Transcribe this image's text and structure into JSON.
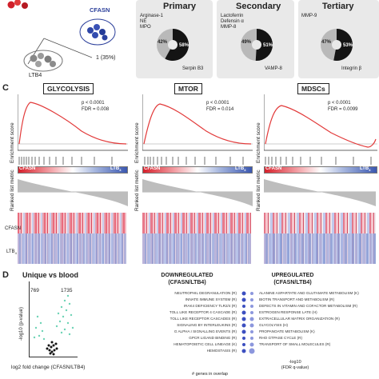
{
  "panel_c": {
    "letter": "C"
  },
  "panel_d": {
    "letter": "D"
  },
  "pca": {
    "cfasn_label": "CFASN",
    "ltb4_label": "LTB4",
    "pc_label": "1 (35%)"
  },
  "granules": [
    {
      "title": "Primary",
      "left_text": [
        "Arginase-1",
        "NE",
        "MPO"
      ],
      "pct_small": "42%",
      "pct_large": "58%",
      "right_text": "Serpin B3",
      "fraction_large": 0.58
    },
    {
      "title": "Secondary",
      "left_text": [
        "Lactoferrin",
        "Defensin α",
        "MMP-8"
      ],
      "pct_small": "49%",
      "pct_large": "51%",
      "right_text": "VAMP-8",
      "fraction_large": 0.51
    },
    {
      "title": "Tertiary",
      "left_text": [
        "MMP-9"
      ],
      "pct_small": "47%",
      "pct_large": "53%",
      "right_text": "Integrin β",
      "fraction_large": 0.53
    }
  ],
  "gsea": [
    {
      "title": "GLYCOLYSIS",
      "p": "p < 0.0001",
      "fdr": "FDR = 0.008"
    },
    {
      "title": "MTOR",
      "p": "p < 0.0001",
      "fdr": "FDR = 0.014"
    },
    {
      "title": "MDSCs",
      "p": "p < 0.0001",
      "fdr": "FDR = 0.0099"
    }
  ],
  "gsea_labels": {
    "enrichment": "Enrichment score",
    "ranked": "Ranked list metric",
    "bar_left": "CFASN",
    "bar_right": "LTB",
    "bar_right_sub": "4",
    "heat_row1": "CFASN",
    "heat_row2": "LTB",
    "heat_row2_sub": "4"
  },
  "volcano": {
    "title": "Unique vs blood",
    "n_left": "769",
    "n_right": "1735",
    "ylabel": "-log10 (p-value)",
    "xlabel": "log2 fold change (CFASN/LTB4)"
  },
  "pathways": {
    "down_title": "DOWNREGULATED",
    "down_sub": "(CFASN/LTB4)",
    "up_title": "UPREGULATED",
    "up_sub": "(CFASN/LTB4)",
    "down_terms": [
      "NEUTROPHIL DEGRANULATION (R)",
      "INNATE IMMUNE SYSTEM (R)",
      "IRAK4 DEFICIENCY TLR2/4 (R)",
      "TOLL LIKE RECEPTOR 4 CASCADE (R)",
      "TOLL LIKE RECEPTOR CASCADES (R)",
      "SIGNALING BY INTERLEUKINS (R)",
      "G ALPHA I SIGNALLING EVENTS (R)",
      "GPCR LIGAND BINDING (R)",
      "HEMATOPOIETIC CELL LINEAGE (K)",
      "HEMOSTASIS (R)"
    ],
    "up_terms": [
      "ALANINE ASPARTATE AND GLUTAMATE METABOLISM (K)",
      "BIOTIN TRANSPORT AND METABOLISM (R)",
      "DEFECTS IN VITAMIN AND COFACTOR METABOLISM (R)",
      "ESTROGEN RESPONSE LATE (H)",
      "EXTRACELLULAR MATRIX ORGANIZATION (R)",
      "GLYCOLYSIS (H)",
      "PROPANOATE METABOLISM (K)",
      "RHO GTPASE CYCLE (R)",
      "TRANSPORT OF SMALL MOLECULES (R)"
    ],
    "footer_left": "# genes in overlap",
    "footer_right_1": "-log10",
    "footer_right_2": "(FDR q-value)"
  }
}
